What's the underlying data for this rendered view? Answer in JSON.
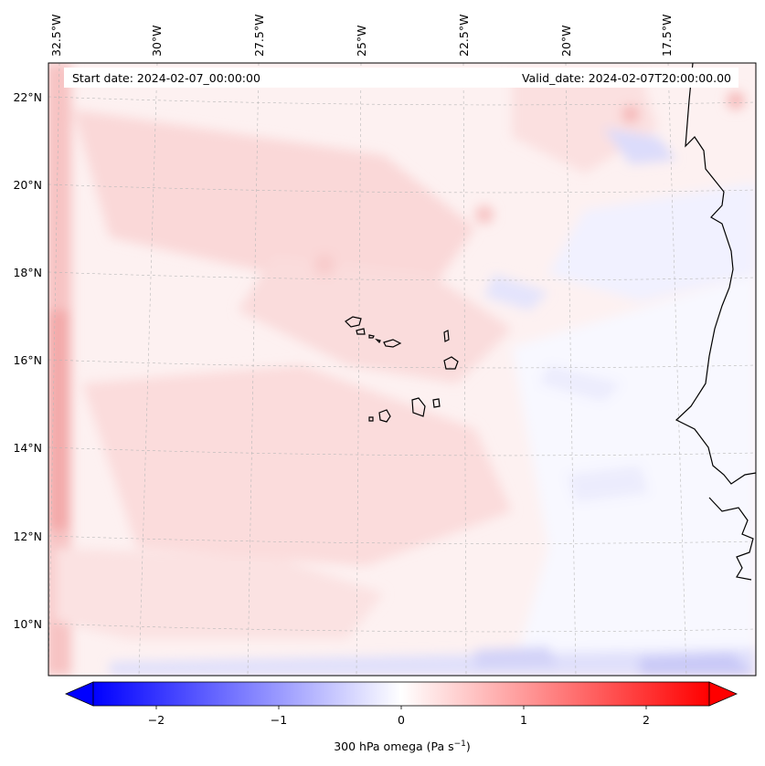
{
  "header": {
    "start_date": "Start date: 2024-02-07_00:00:00",
    "valid_date": "Valid_date: 2024-02-07T20:00:00.00"
  },
  "axes": {
    "lon_labels": [
      "32.5°W",
      "30°W",
      "27.5°W",
      "25°W",
      "22.5°W",
      "20°W",
      "17.5°W"
    ],
    "lat_labels": [
      "22°N",
      "20°N",
      "18°N",
      "16°N",
      "14°N",
      "12°N",
      "10°N"
    ]
  },
  "colorbar": {
    "ticks": [
      "−2",
      "−1",
      "0",
      "1",
      "2"
    ],
    "label_prefix": "300 hPa omega (Pa s",
    "label_sup": "−1",
    "label_suffix": ")",
    "min": -2.6,
    "max": 2.6,
    "low_color": "#0000ff",
    "mid_color": "#ffffff",
    "high_color": "#ff0000"
  },
  "chart_data": {
    "type": "heatmap",
    "field": "300 hPa omega",
    "units": "Pa s^-1",
    "projection": "map, coastlines shown",
    "lon_range": [
      "33°W",
      "16°W"
    ],
    "lat_range": [
      "9°N",
      "22.8°N"
    ],
    "grid": true,
    "color_scale": "bwr, extended both ends",
    "value_range": [
      -2.6,
      2.6
    ]
  }
}
